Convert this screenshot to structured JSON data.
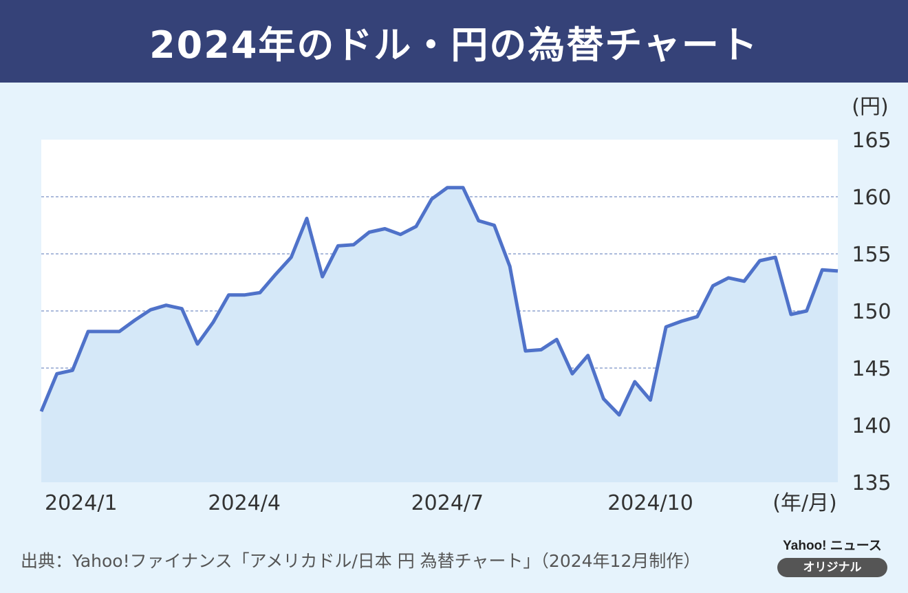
{
  "header": {
    "title": "2024年のドル・円の為替チャート"
  },
  "chart_data": {
    "type": "area",
    "title": "2024年のドル・円の為替チャート",
    "y_unit_label": "(円)",
    "x_unit_label": "(年/月)",
    "ylim": [
      135,
      165
    ],
    "yticks": [
      135,
      140,
      145,
      150,
      155,
      160,
      165
    ],
    "xlim": [
      0,
      51
    ],
    "xticks": [
      {
        "x": 0,
        "label": "2024/1"
      },
      {
        "x": 13,
        "label": "2024/4"
      },
      {
        "x": 26,
        "label": "2024/7"
      },
      {
        "x": 39,
        "label": "2024/10"
      }
    ],
    "grid": true,
    "colors": {
      "line": "#4f72c9",
      "fill": "#d5e8f8",
      "grid": "#8fa3cf"
    },
    "values": [
      141.2,
      144.5,
      144.8,
      148.2,
      148.2,
      148.2,
      149.2,
      150.1,
      150.5,
      150.2,
      147.1,
      149.0,
      151.4,
      151.4,
      151.6,
      153.2,
      154.7,
      158.1,
      153.0,
      155.7,
      155.8,
      156.9,
      157.2,
      156.7,
      157.4,
      159.8,
      160.8,
      160.8,
      157.9,
      157.5,
      153.9,
      146.5,
      146.6,
      147.5,
      144.5,
      146.1,
      142.3,
      140.9,
      143.8,
      142.2,
      148.6,
      149.1,
      149.5,
      152.2,
      152.9,
      152.6,
      154.4,
      154.7,
      149.7,
      150.0,
      153.6,
      153.5
    ]
  },
  "footer": {
    "source": "出典：Yahoo!ファイナンス「アメリカドル/日本 円 為替チャート」（2024年12月制作）",
    "brand_name": "Yahoo! ニュース",
    "brand_badge": "オリジナル"
  }
}
